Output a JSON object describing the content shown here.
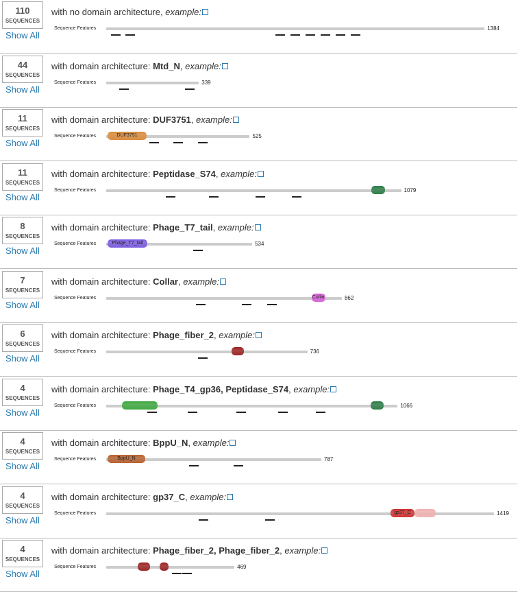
{
  "rows": [
    {
      "count": "110",
      "unit": "SEQUENCES",
      "show_all": "Show All",
      "description": "with no domain architecture,",
      "example": "example:",
      "features_label": "Sequence Features",
      "length": 1384
    },
    {
      "count": "44",
      "unit": "SEQUENCES",
      "show_all": "Show All",
      "description": "with domain architecture:",
      "architecture": "Mtd_N",
      "separator": ",",
      "example": "example:",
      "features_label": "Sequence Features",
      "length": 339
    },
    {
      "count": "11",
      "unit": "SEQUENCES",
      "show_all": "Show All",
      "description": "with domain architecture:",
      "architecture": "DUF3751",
      "separator": ",",
      "example": "example:",
      "features_label": "Sequence Features",
      "length": 525,
      "domain_labels": [
        "DUF3751"
      ]
    },
    {
      "count": "11",
      "unit": "SEQUENCES",
      "show_all": "Show All",
      "description": "with domain architecture:",
      "architecture": "Peptidase_S74",
      "separator": ",",
      "example": "example:",
      "features_label": "Sequence Features",
      "length": 1079
    },
    {
      "count": "8",
      "unit": "SEQUENCES",
      "show_all": "Show All",
      "description": "with domain architecture:",
      "architecture": "Phage_T7_tail",
      "separator": ",",
      "example": "example:",
      "features_label": "Sequence Features",
      "length": 534,
      "domain_labels": [
        "Phage_T7_tail"
      ]
    },
    {
      "count": "7",
      "unit": "SEQUENCES",
      "show_all": "Show All",
      "description": "with domain architecture:",
      "architecture": "Collar",
      "separator": ",",
      "example": "example:",
      "features_label": "Sequence Features",
      "length": 862,
      "domain_labels": [
        "Collar"
      ]
    },
    {
      "count": "6",
      "unit": "SEQUENCES",
      "show_all": "Show All",
      "description": "with domain architecture:",
      "architecture": "Phage_fiber_2",
      "separator": ",",
      "example": "example:",
      "features_label": "Sequence Features",
      "length": 736
    },
    {
      "count": "4",
      "unit": "SEQUENCES",
      "show_all": "Show All",
      "description": "with domain architecture:",
      "architecture": "Phage_T4_gp36, Peptidase_S74",
      "separator": ",",
      "example": "example:",
      "features_label": "Sequence Features",
      "length": 1066
    },
    {
      "count": "4",
      "unit": "SEQUENCES",
      "show_all": "Show All",
      "description": "with domain architecture:",
      "architecture": "BppU_N",
      "separator": ",",
      "example": "example:",
      "features_label": "Sequence Features",
      "length": 787,
      "domain_labels": [
        "BppU_N"
      ]
    },
    {
      "count": "4",
      "unit": "SEQUENCES",
      "show_all": "Show All",
      "description": "with domain architecture:",
      "architecture": "gp37_C",
      "separator": ",",
      "example": "example:",
      "features_label": "Sequence Features",
      "length": 1419,
      "domain_labels": [
        "gp37_C"
      ]
    },
    {
      "count": "4",
      "unit": "SEQUENCES",
      "show_all": "Show All",
      "description": "with domain architecture:",
      "architecture": "Phage_fiber_2, Phage_fiber_2",
      "separator": ",",
      "example": "example:",
      "features_label": "Sequence Features",
      "length": 469
    }
  ]
}
